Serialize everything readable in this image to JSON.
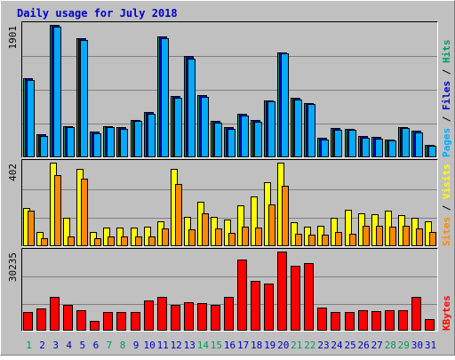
{
  "chart_data": [
    {
      "type": "bar",
      "title": "Daily usage for July 2018",
      "panel": "hits-files-pages",
      "ylabel_top": "1901",
      "right_label": [
        "Pages",
        "Files",
        "Hits"
      ],
      "categories": [
        "1",
        "2",
        "3",
        "4",
        "5",
        "6",
        "7",
        "8",
        "9",
        "10",
        "11",
        "12",
        "13",
        "14",
        "15",
        "16",
        "17",
        "18",
        "19",
        "20",
        "21",
        "22",
        "23",
        "24",
        "25",
        "26",
        "27",
        "28",
        "29",
        "30",
        "31"
      ],
      "ylim": [
        0,
        1901
      ],
      "series": [
        {
          "name": "Hits",
          "color": "#009966",
          "values": [
            1130,
            330,
            1901,
            450,
            1705,
            370,
            450,
            430,
            540,
            650,
            1740,
            880,
            1450,
            890,
            520,
            430,
            620,
            530,
            820,
            1510,
            850,
            780,
            280,
            420,
            410,
            300,
            290,
            260,
            440,
            380,
            180
          ]
        },
        {
          "name": "Files",
          "color": "#0000cc",
          "values": [
            1130,
            330,
            1901,
            450,
            1705,
            370,
            450,
            430,
            540,
            650,
            1740,
            880,
            1450,
            890,
            520,
            430,
            620,
            530,
            820,
            1510,
            850,
            780,
            280,
            420,
            410,
            300,
            290,
            260,
            440,
            380,
            180
          ]
        },
        {
          "name": "Pages",
          "color": "#00aaff",
          "values": [
            1110,
            310,
            1870,
            430,
            1680,
            350,
            430,
            410,
            520,
            630,
            1710,
            860,
            1420,
            870,
            500,
            410,
            600,
            510,
            800,
            1490,
            830,
            760,
            260,
            400,
            390,
            280,
            270,
            240,
            420,
            360,
            160
          ]
        }
      ],
      "colors": {
        "Hits": "#009966",
        "Files": "#0000cc",
        "Pages": "#00aaff"
      }
    },
    {
      "type": "bar",
      "panel": "sites-visits",
      "ylabel_top": "402",
      "right_label": [
        "Sites",
        "Visits"
      ],
      "categories": [
        "1",
        "2",
        "3",
        "4",
        "5",
        "6",
        "7",
        "8",
        "9",
        "10",
        "11",
        "12",
        "13",
        "14",
        "15",
        "16",
        "17",
        "18",
        "19",
        "20",
        "21",
        "22",
        "23",
        "24",
        "25",
        "26",
        "27",
        "28",
        "29",
        "30",
        "31"
      ],
      "ylim": [
        0,
        402
      ],
      "series": [
        {
          "name": "Visits",
          "color": "#ffff00",
          "values": [
            185,
            70,
            402,
            135,
            370,
            70,
            90,
            90,
            90,
            95,
            120,
            370,
            140,
            215,
            140,
            130,
            195,
            240,
            310,
            400,
            115,
            95,
            100,
            135,
            175,
            160,
            155,
            170,
            150,
            135,
            120
          ]
        },
        {
          "name": "Sites",
          "color": "#ff8800",
          "values": [
            170,
            40,
            340,
            45,
            325,
            40,
            45,
            45,
            45,
            45,
            85,
            300,
            80,
            160,
            85,
            65,
            95,
            90,
            200,
            290,
            60,
            55,
            55,
            70,
            60,
            100,
            100,
            95,
            100,
            85,
            70
          ]
        }
      ],
      "colors": {
        "Visits": "#ffff00",
        "Sites": "#ff8800"
      }
    },
    {
      "type": "bar",
      "panel": "kbytes",
      "ylabel_top": "30235",
      "right_label": [
        "KBytes"
      ],
      "categories": [
        "1",
        "2",
        "3",
        "4",
        "5",
        "6",
        "7",
        "8",
        "9",
        "10",
        "11",
        "12",
        "13",
        "14",
        "15",
        "16",
        "17",
        "18",
        "19",
        "20",
        "21",
        "22",
        "23",
        "24",
        "25",
        "26",
        "27",
        "28",
        "29",
        "30",
        "31"
      ],
      "ylim": [
        0,
        30235
      ],
      "series": [
        {
          "name": "KBytes",
          "color": "#ff0000",
          "values": [
            7000,
            8500,
            13000,
            10000,
            7800,
            3800,
            7200,
            7300,
            7200,
            11400,
            13000,
            9800,
            10800,
            10400,
            10000,
            12800,
            27300,
            19000,
            18000,
            30235,
            24800,
            25800,
            9000,
            7000,
            7300,
            7700,
            7500,
            7700,
            7700,
            13000,
            4500
          ]
        }
      ],
      "colors": {
        "KBytes": "#ff0000"
      }
    }
  ],
  "xaxis": {
    "labels": [
      "1",
      "2",
      "3",
      "4",
      "5",
      "6",
      "7",
      "8",
      "9",
      "10",
      "11",
      "12",
      "13",
      "14",
      "15",
      "16",
      "17",
      "18",
      "19",
      "20",
      "21",
      "22",
      "23",
      "24",
      "25",
      "26",
      "27",
      "28",
      "29",
      "30",
      "31"
    ],
    "weekend_days": [
      "1",
      "7",
      "8",
      "14",
      "15",
      "21",
      "22",
      "28",
      "29"
    ],
    "weekday_color": "#0000cc",
    "weekend_color": "#009966"
  },
  "style": {
    "background": "#c0c0c0",
    "gridline": "#808080",
    "title_color": "#0000cc",
    "axis_value_color": "#000000"
  }
}
